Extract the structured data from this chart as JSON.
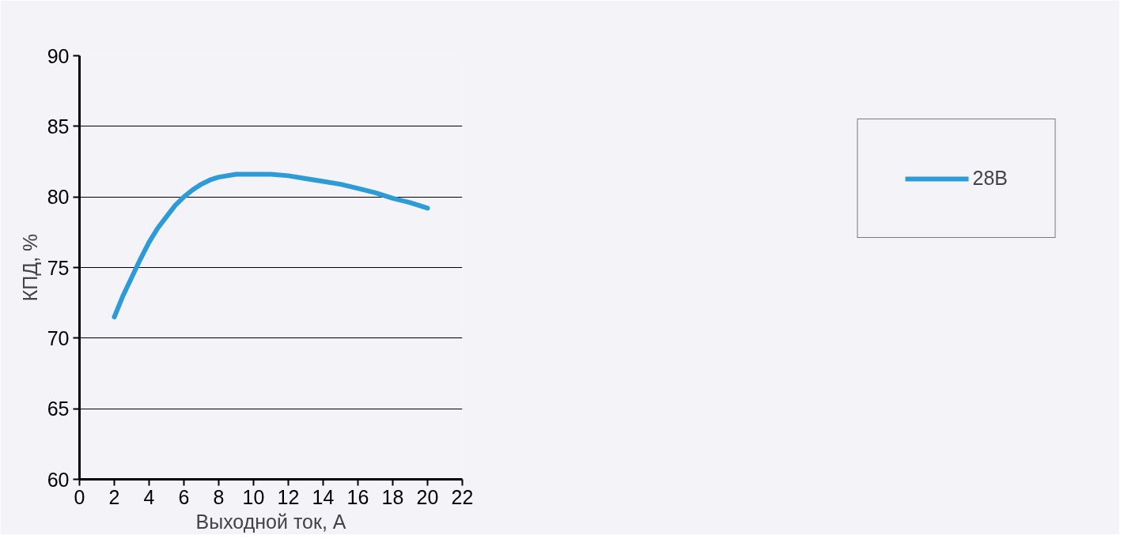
{
  "chart_data": {
    "type": "line",
    "xlabel": "Выходной ток, А",
    "ylabel": "КПД, %",
    "x": [
      2,
      2.5,
      3,
      3.5,
      4,
      4.5,
      5,
      5.5,
      6,
      6.5,
      7,
      7.5,
      8,
      9,
      10,
      11,
      12,
      13,
      14,
      15,
      16,
      17,
      18,
      19,
      20
    ],
    "series": [
      {
        "name": "28В",
        "color": "#2e9bd6",
        "values": [
          71.5,
          73.0,
          74.3,
          75.6,
          76.8,
          77.8,
          78.6,
          79.4,
          80.0,
          80.5,
          80.9,
          81.2,
          81.4,
          81.6,
          81.6,
          81.6,
          81.5,
          81.3,
          81.1,
          80.9,
          80.6,
          80.3,
          79.9,
          79.6,
          79.2
        ]
      }
    ],
    "xlim": [
      0,
      22
    ],
    "xticks": [
      0,
      2,
      4,
      6,
      8,
      10,
      12,
      14,
      16,
      18,
      20,
      22
    ],
    "ylim": [
      60,
      90
    ],
    "yticks": [
      60,
      65,
      70,
      75,
      80,
      85,
      90
    ],
    "grid": "y",
    "legend": "right",
    "marker": "none",
    "line_style": "solid"
  }
}
